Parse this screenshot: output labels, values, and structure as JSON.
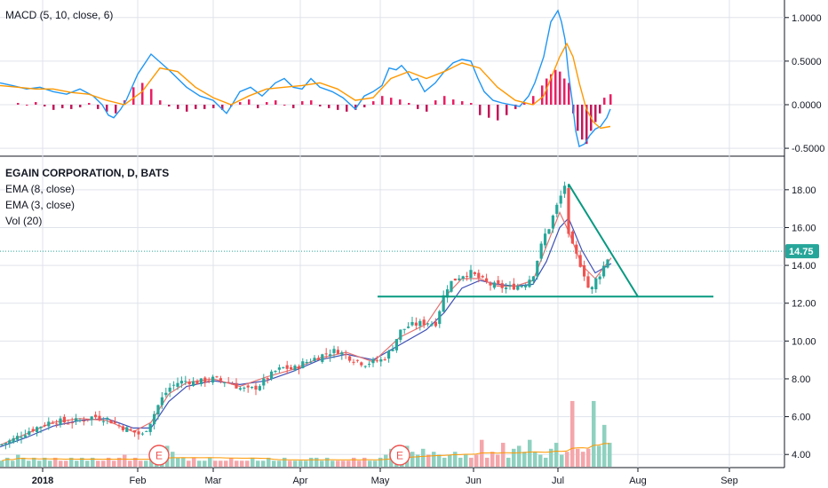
{
  "colors": {
    "up": "#26a69a",
    "down": "#ef5350",
    "vol_up": "#8fd1bf",
    "vol_down": "#f4a6aa",
    "ema8": "#3f51b5",
    "ema3": "#e57373",
    "macd_line": "#2196f3",
    "signal_line": "#ff9800",
    "hist_up": "#e91e63",
    "hist_down": "#c2185b",
    "trend": "#089981",
    "price_line": "#26a69a",
    "grid": "#e0e3eb",
    "axis": "#787b86"
  },
  "macd_panel": {
    "label": "MACD (5, 10, close, 6)"
  },
  "price_panel": {
    "title": "EGAIN CORPORATION, D, BATS",
    "studies": [
      "EMA (8, close)",
      "EMA (3, close)",
      "Vol (20)"
    ],
    "last_price_label": "14.75",
    "earnings_marker": "E"
  },
  "chart_data": [
    {
      "type": "line",
      "title": "MACD (5, 10, close, 6)",
      "ylim": [
        -0.55,
        1.12
      ],
      "yticks": [
        "1.0000",
        "0.5000",
        "0.0000",
        "-0.5000"
      ],
      "ytick_values": [
        1.0,
        0.5,
        0.0,
        -0.5
      ],
      "series": [
        {
          "name": "MACD",
          "x": [
            0,
            14,
            30,
            45,
            60,
            75,
            90,
            105,
            115,
            122,
            128,
            136,
            142,
            155,
            170,
            190,
            210,
            225,
            240,
            255,
            260,
            270,
            282,
            295,
            310,
            320,
            330,
            340,
            350,
            360,
            374,
            386,
            400,
            410,
            420,
            430,
            438,
            446,
            452,
            458,
            464,
            470,
            478,
            490,
            500,
            510,
            520,
            530,
            538,
            545,
            555,
            565,
            575,
            585,
            595,
            602,
            612,
            620,
            628,
            632,
            636,
            640,
            644,
            648,
            652,
            658,
            664,
            670,
            676,
            683,
            687
          ],
          "y": [
            0.25,
            0.22,
            0.18,
            0.2,
            0.15,
            0.12,
            0.18,
            0.1,
            0.0,
            -0.12,
            -0.15,
            -0.05,
            0.05,
            0.35,
            0.58,
            0.4,
            0.2,
            0.1,
            0.05,
            -0.1,
            -0.02,
            0.15,
            0.2,
            0.1,
            0.25,
            0.3,
            0.2,
            0.18,
            0.3,
            0.2,
            0.15,
            0.08,
            -0.05,
            0.1,
            0.15,
            0.22,
            0.42,
            0.4,
            0.45,
            0.38,
            0.28,
            0.3,
            0.15,
            0.25,
            0.38,
            0.48,
            0.52,
            0.5,
            0.3,
            0.15,
            0.05,
            0.02,
            0.0,
            -0.02,
            0.1,
            0.25,
            0.55,
            0.95,
            1.08,
            0.95,
            0.75,
            0.35,
            0.05,
            -0.3,
            -0.48,
            -0.45,
            -0.35,
            -0.28,
            -0.25,
            -0.15,
            -0.05
          ]
        },
        {
          "name": "Signal",
          "x": [
            0,
            20,
            40,
            60,
            80,
            100,
            120,
            140,
            160,
            180,
            200,
            220,
            240,
            260,
            280,
            300,
            320,
            340,
            360,
            380,
            400,
            420,
            440,
            460,
            480,
            500,
            520,
            540,
            560,
            580,
            600,
            612,
            622,
            630,
            638,
            645,
            652,
            660,
            668,
            676,
            687
          ],
          "y": [
            0.22,
            0.2,
            0.18,
            0.18,
            0.14,
            0.12,
            0.05,
            0.0,
            0.15,
            0.42,
            0.38,
            0.2,
            0.08,
            0.0,
            0.1,
            0.18,
            0.2,
            0.22,
            0.25,
            0.18,
            0.05,
            0.08,
            0.3,
            0.38,
            0.3,
            0.38,
            0.48,
            0.42,
            0.2,
            0.05,
            0.0,
            0.1,
            0.35,
            0.55,
            0.7,
            0.55,
            0.25,
            -0.05,
            -0.2,
            -0.27,
            -0.25
          ]
        }
      ],
      "histogram": {
        "x": [
          20,
          30,
          40,
          50,
          60,
          70,
          80,
          90,
          100,
          110,
          120,
          130,
          140,
          150,
          160,
          170,
          180,
          190,
          200,
          210,
          220,
          230,
          240,
          250,
          260,
          270,
          280,
          290,
          300,
          310,
          320,
          330,
          340,
          350,
          360,
          370,
          380,
          390,
          400,
          410,
          420,
          430,
          440,
          450,
          460,
          470,
          480,
          490,
          500,
          510,
          520,
          530,
          540,
          550,
          560,
          570,
          580,
          590,
          600,
          610,
          615,
          620,
          625,
          630,
          635,
          640,
          645,
          650,
          655,
          660,
          665,
          670,
          675,
          680,
          687
        ],
        "y": [
          0.02,
          0.0,
          0.03,
          -0.02,
          -0.06,
          -0.04,
          -0.05,
          -0.03,
          0.02,
          -0.05,
          -0.08,
          -0.1,
          0.05,
          0.2,
          0.25,
          0.18,
          0.05,
          -0.02,
          -0.05,
          -0.08,
          -0.05,
          -0.05,
          -0.04,
          -0.06,
          -0.02,
          0.03,
          0.06,
          -0.04,
          0.03,
          0.05,
          0.0,
          -0.04,
          0.04,
          0.05,
          -0.02,
          -0.04,
          -0.06,
          -0.08,
          -0.06,
          -0.03,
          0.04,
          0.1,
          0.08,
          0.06,
          0.02,
          -0.05,
          -0.08,
          0.05,
          0.1,
          0.06,
          0.04,
          0.02,
          -0.12,
          -0.15,
          -0.18,
          -0.12,
          -0.05,
          0.02,
          0.1,
          0.22,
          0.3,
          0.35,
          0.4,
          0.38,
          0.3,
          0.25,
          -0.1,
          -0.3,
          -0.4,
          -0.45,
          -0.3,
          -0.2,
          -0.1,
          0.08,
          0.12
        ]
      }
    },
    {
      "type": "candlestick",
      "title": "EGAIN CORPORATION, D, BATS",
      "ylim": [
        3.4,
        19.4
      ],
      "yticks": [
        "18.00",
        "16.00",
        "14.00",
        "12.00",
        "10.00",
        "8.00",
        "6.00",
        "4.00"
      ],
      "ytick_values": [
        18,
        16,
        14,
        12,
        10,
        8,
        6,
        4
      ],
      "last_price": 14.75,
      "close_path": {
        "x": [
          0,
          15,
          30,
          45,
          60,
          75,
          90,
          105,
          120,
          135,
          150,
          160,
          170,
          180,
          190,
          200,
          210,
          220,
          230,
          240,
          250,
          260,
          270,
          280,
          290,
          300,
          310,
          320,
          330,
          340,
          350,
          360,
          370,
          380,
          390,
          400,
          410,
          420,
          430,
          440,
          450,
          460,
          470,
          480,
          490,
          500,
          505,
          510,
          520,
          530,
          540,
          550,
          560,
          570,
          580,
          590,
          600,
          606,
          612,
          618,
          624,
          630,
          636,
          640,
          646,
          652,
          658,
          664,
          670,
          676,
          682,
          688
        ],
        "y": [
          4.5,
          4.8,
          5.2,
          5.5,
          5.8,
          5.7,
          5.8,
          6.0,
          5.9,
          5.5,
          5.2,
          5.0,
          5.8,
          6.8,
          7.5,
          7.8,
          7.9,
          7.8,
          7.9,
          8.0,
          7.9,
          7.8,
          7.5,
          7.4,
          7.6,
          8.0,
          8.4,
          8.6,
          8.5,
          8.8,
          9.0,
          9.2,
          9.4,
          9.5,
          9.2,
          9.0,
          8.8,
          8.9,
          9.0,
          9.5,
          10.5,
          10.8,
          10.9,
          11.0,
          10.9,
          12.5,
          13.0,
          13.2,
          13.5,
          13.6,
          13.3,
          13.0,
          12.9,
          12.8,
          12.9,
          13.0,
          13.5,
          14.5,
          15.5,
          16.0,
          16.8,
          17.5,
          18.3,
          15.5,
          14.8,
          14.2,
          13.5,
          12.5,
          13.2,
          13.6,
          14.2,
          14.75
        ]
      },
      "ema8_path": {
        "x": [
          0,
          30,
          60,
          90,
          120,
          150,
          170,
          190,
          210,
          240,
          270,
          300,
          330,
          360,
          390,
          420,
          450,
          480,
          500,
          520,
          540,
          560,
          580,
          600,
          615,
          630,
          640,
          655,
          670,
          688
        ],
        "y": [
          4.4,
          4.9,
          5.5,
          5.8,
          5.9,
          5.4,
          5.4,
          6.8,
          7.6,
          7.9,
          7.7,
          7.9,
          8.4,
          9.0,
          9.3,
          9.0,
          9.8,
          10.6,
          11.5,
          12.8,
          13.2,
          13.0,
          12.9,
          13.0,
          14.2,
          16.0,
          16.5,
          14.8,
          13.6,
          14.1
        ]
      },
      "ema3_path": {
        "x": [
          0,
          30,
          60,
          90,
          120,
          150,
          170,
          190,
          210,
          240,
          270,
          300,
          330,
          360,
          390,
          420,
          450,
          480,
          500,
          520,
          540,
          560,
          580,
          600,
          615,
          630,
          640,
          655,
          670,
          688
        ],
        "y": [
          4.5,
          5.1,
          5.7,
          5.9,
          5.8,
          5.2,
          5.7,
          7.2,
          7.8,
          8.0,
          7.6,
          8.1,
          8.5,
          9.1,
          9.4,
          8.9,
          10.2,
          10.9,
          12.3,
          13.3,
          13.3,
          12.9,
          12.9,
          13.2,
          15.0,
          16.8,
          15.8,
          14.0,
          13.3,
          14.4
        ]
      },
      "volume": {
        "x_start": 2,
        "x_step": 6,
        "values": [
          2,
          3,
          2,
          4,
          3,
          2,
          3,
          2,
          3,
          2,
          3,
          2,
          2,
          3,
          2,
          3,
          2,
          3,
          2,
          2,
          3,
          2,
          3,
          4,
          2,
          3,
          2,
          2,
          3,
          3,
          4,
          7,
          5,
          3,
          3,
          2,
          3,
          2,
          2,
          3,
          2,
          2,
          2,
          3,
          2,
          2,
          2,
          3,
          2,
          2,
          3,
          2,
          2,
          3,
          2,
          2,
          2,
          2,
          3,
          3,
          2,
          3,
          2,
          2,
          2,
          2,
          3,
          2,
          3,
          2,
          2,
          3,
          4,
          6,
          5,
          4,
          7,
          5,
          4,
          6,
          4,
          5,
          4,
          3,
          4,
          5,
          3,
          4,
          3,
          4,
          9,
          3,
          5,
          4,
          8,
          3,
          6,
          7,
          5,
          9,
          5,
          4,
          3,
          6,
          8,
          4,
          5,
          22,
          6,
          5,
          6,
          22,
          7,
          14,
          8,
          10,
          25,
          16,
          10,
          12,
          9,
          12,
          8,
          6,
          8,
          10,
          12,
          7,
          8,
          6,
          13,
          8,
          10,
          12,
          14
        ]
      },
      "volume_ylim": [
        0,
        30
      ]
    }
  ],
  "x_axis": {
    "labels": [
      "2018",
      "Feb",
      "Mar",
      "Apr",
      "May",
      "Jun",
      "Jul",
      "Aug",
      "Sep"
    ],
    "positions": [
      48,
      155,
      240,
      338,
      428,
      533,
      628,
      718,
      821
    ]
  },
  "annotations": {
    "support_line": {
      "x1": 425,
      "x2": 803,
      "y": 12.35
    },
    "triangle_top": {
      "x": 640,
      "y": 18.3
    },
    "triangle_bottom": {
      "x": 718,
      "y": 12.35
    },
    "earnings_x": [
      179,
      450
    ]
  }
}
